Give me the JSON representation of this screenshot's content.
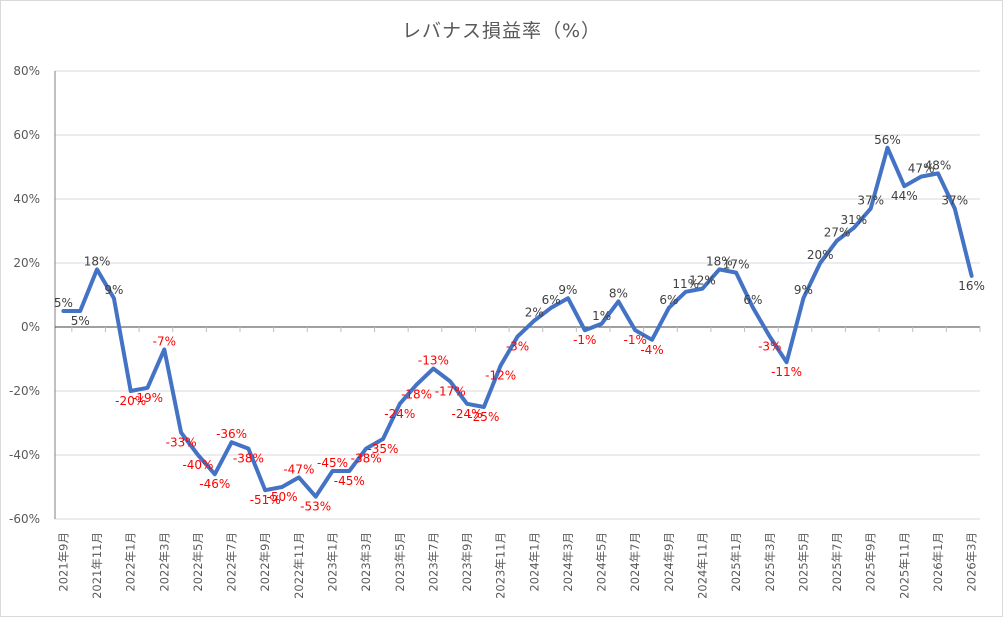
{
  "chart_data": {
    "type": "line",
    "title": "レバナス損益率（%）",
    "xlabel": "",
    "ylabel": "",
    "ylim": [
      -60,
      80
    ],
    "yticks": [
      "80%",
      "60%",
      "40%",
      "20%",
      "0%",
      "-20%",
      "-40%",
      "-60%"
    ],
    "ytick_values": [
      80,
      60,
      40,
      20,
      0,
      -20,
      -40,
      -60
    ],
    "grid": true,
    "legend": null,
    "x_tick_labels": [
      "2021年9月",
      "2021年11月",
      "2022年1月",
      "2022年3月",
      "2022年5月",
      "2022年7月",
      "2022年9月",
      "2022年11月",
      "2023年1月",
      "2023年3月",
      "2023年5月",
      "2023年7月",
      "2023年9月",
      "2023年11月",
      "2024年1月",
      "2024年3月",
      "2024年5月",
      "2024年7月",
      "2024年9月",
      "2024年11月",
      "2025年1月",
      "2025年3月",
      "2025年5月",
      "2025年7月",
      "2025年9月",
      "2025年11月",
      "2026年1月",
      "2026年3月"
    ],
    "x": [
      "2021-09",
      "2021-10",
      "2021-11",
      "2021-12",
      "2022-01",
      "2022-02",
      "2022-03",
      "2022-04",
      "2022-05",
      "2022-06",
      "2022-07",
      "2022-08",
      "2022-09",
      "2022-10",
      "2022-11",
      "2022-12",
      "2023-01",
      "2023-02",
      "2023-03",
      "2023-04",
      "2023-05",
      "2023-06",
      "2023-07",
      "2023-08",
      "2023-09",
      "2023-10",
      "2023-11",
      "2023-12",
      "2024-01",
      "2024-02",
      "2024-03",
      "2024-04",
      "2024-05",
      "2024-06",
      "2024-07",
      "2024-08",
      "2024-09",
      "2024-10",
      "2024-11",
      "2024-12",
      "2025-01",
      "2025-02",
      "2025-03",
      "2025-04",
      "2025-05",
      "2025-06",
      "2025-07",
      "2025-08",
      "2025-09",
      "2025-10",
      "2025-11",
      "2025-12",
      "2026-01",
      "2026-02",
      "2026-03"
    ],
    "series": [
      {
        "name": "レバナス損益率",
        "color": "#4472c4",
        "values": [
          5,
          5,
          18,
          9,
          -20,
          -19,
          -7,
          -33,
          -40,
          -46,
          -36,
          -38,
          -51,
          -50,
          -47,
          -53,
          -45,
          -45,
          -38,
          -35,
          -24,
          -18,
          -13,
          -17,
          -24,
          -25,
          -12,
          -3,
          2,
          6,
          9,
          -1,
          1,
          8,
          -1,
          -4,
          6,
          11,
          12,
          18,
          17,
          6,
          -3,
          -11,
          9,
          20,
          27,
          31,
          37,
          56,
          44,
          47,
          48,
          37,
          16
        ]
      }
    ],
    "label_colors": {
      "positive": "#404040",
      "negative": "#ff0000"
    }
  }
}
